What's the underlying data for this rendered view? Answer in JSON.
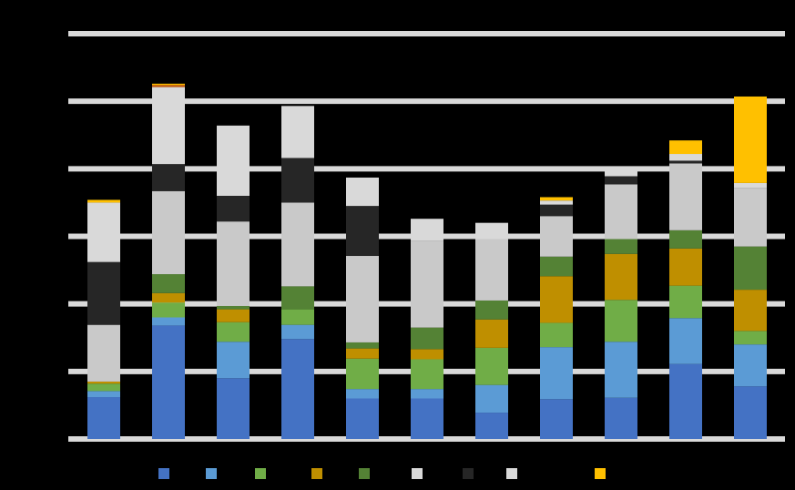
{
  "chart_data": {
    "type": "bar",
    "stacked": true,
    "title": "",
    "xlabel": "",
    "ylabel": "",
    "categories": [
      "",
      "",
      "",
      "",
      "",
      "",
      "",
      "",
      "",
      "",
      ""
    ],
    "ylim": [
      0,
      6
    ],
    "gridlines": [
      0,
      1,
      2,
      3,
      4,
      5,
      6
    ],
    "grid": true,
    "legend_position": "bottom",
    "colors": {
      "background": "#000000",
      "grid": "#d9d9d9"
    },
    "series": [
      {
        "color": "#4472c4",
        "values": [
          0.62,
          1.68,
          0.9,
          1.48,
          0.6,
          0.6,
          0.39,
          0.59,
          0.61,
          1.11,
          0.78
        ]
      },
      {
        "color": "#5b9bd5",
        "values": [
          0.09,
          0.12,
          0.54,
          0.21,
          0.14,
          0.14,
          0.41,
          0.77,
          0.83,
          0.68,
          0.62
        ]
      },
      {
        "color": "#70ad47",
        "values": [
          0.11,
          0.22,
          0.29,
          0.23,
          0.45,
          0.44,
          0.55,
          0.36,
          0.62,
          0.48,
          0.2
        ]
      },
      {
        "color": "#bf8f00",
        "values": [
          0.03,
          0.14,
          0.19,
          0.0,
          0.15,
          0.15,
          0.42,
          0.69,
          0.68,
          0.55,
          0.61
        ]
      },
      {
        "color": "#548235",
        "values": [
          0.0,
          0.28,
          0.05,
          0.34,
          0.09,
          0.32,
          0.28,
          0.29,
          0.22,
          0.27,
          0.64
        ]
      },
      {
        "color": "#c9c9c9",
        "values": [
          0.84,
          1.23,
          1.25,
          1.24,
          1.28,
          1.28,
          0.91,
          0.6,
          0.81,
          0.99,
          0.87
        ]
      },
      {
        "color": "#262626",
        "values": [
          0.93,
          0.4,
          0.38,
          0.66,
          0.74,
          0.0,
          0.0,
          0.17,
          0.12,
          0.04,
          0.0
        ]
      },
      {
        "color": "#d9d9d9",
        "values": [
          0.88,
          1.14,
          1.04,
          0.77,
          0.42,
          0.33,
          0.24,
          0.06,
          0.08,
          0.1,
          0.07
        ]
      },
      {
        "color": "#c55a11",
        "values": [
          0.0,
          0.03,
          0.0,
          0.0,
          0.0,
          0.0,
          0.0,
          0.0,
          0.0,
          0.0,
          0.0
        ]
      },
      {
        "color": "#ffc000",
        "values": [
          0.04,
          0.02,
          0.0,
          0.0,
          0.0,
          0.0,
          0.0,
          0.05,
          0.0,
          0.2,
          1.28
        ]
      }
    ],
    "legend": [
      {
        "label": "",
        "color": "#4472c4"
      },
      {
        "label": "",
        "color": "#5b9bd5"
      },
      {
        "label": "",
        "color": "#70ad47"
      },
      {
        "label": "",
        "color": "#bf8f00"
      },
      {
        "label": "",
        "color": "#548235"
      },
      {
        "label": "",
        "color": "#d9d9d9"
      },
      {
        "label": "",
        "color": "#262626"
      },
      {
        "label": "",
        "color": "#d9d9d9"
      },
      {
        "label": "",
        "color": "#ffc000"
      }
    ]
  }
}
